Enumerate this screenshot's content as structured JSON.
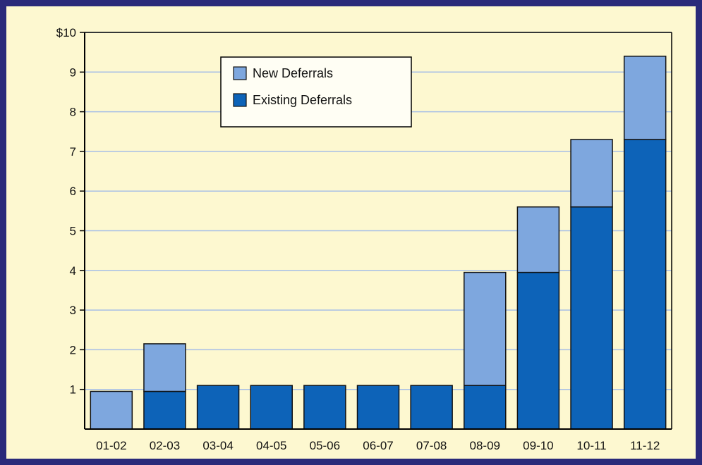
{
  "chart_data": {
    "type": "bar",
    "stacked": true,
    "categories": [
      "01-02",
      "02-03",
      "03-04",
      "04-05",
      "05-06",
      "06-07",
      "07-08",
      "08-09",
      "09-10",
      "10-11",
      "11-12"
    ],
    "series": [
      {
        "name": "Existing Deferrals",
        "color": "#0d63b8",
        "values": [
          0,
          0.95,
          1.1,
          1.1,
          1.1,
          1.1,
          1.1,
          1.1,
          3.95,
          5.6,
          7.3
        ]
      },
      {
        "name": "New Deferrals",
        "color": "#7ea7de",
        "values": [
          0.95,
          1.2,
          0,
          0,
          0,
          0,
          0,
          2.85,
          1.65,
          1.7,
          2.1
        ]
      }
    ],
    "ylim": [
      0,
      10
    ],
    "yticks": [
      {
        "value": 1,
        "label": "1"
      },
      {
        "value": 2,
        "label": "2"
      },
      {
        "value": 3,
        "label": "3"
      },
      {
        "value": 4,
        "label": "4"
      },
      {
        "value": 5,
        "label": "5"
      },
      {
        "value": 6,
        "label": "6"
      },
      {
        "value": 7,
        "label": "7"
      },
      {
        "value": 8,
        "label": "8"
      },
      {
        "value": 9,
        "label": "9"
      },
      {
        "value": 10,
        "label": "$10"
      }
    ],
    "grid": true,
    "legend": {
      "position": "top-center",
      "entries": [
        {
          "label": "New Deferrals",
          "color": "#7ea7de"
        },
        {
          "label": "Existing Deferrals",
          "color": "#0d63b8"
        }
      ]
    },
    "title": "",
    "xlabel": "",
    "ylabel": ""
  },
  "colors": {
    "background": "#fdf8d0",
    "frame": "#2a2a7a",
    "gridline": "#a7bfe6"
  }
}
